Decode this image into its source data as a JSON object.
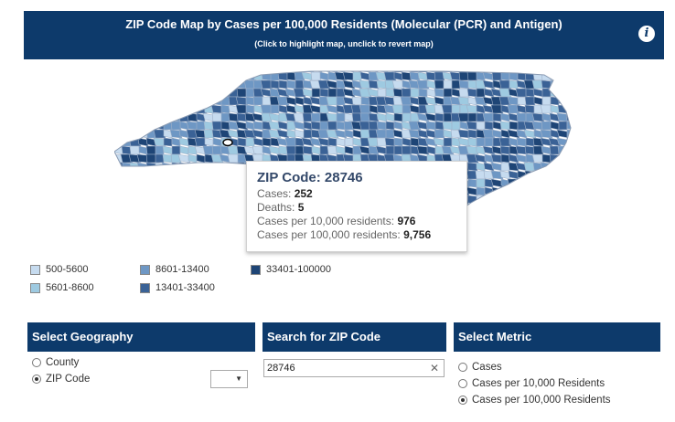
{
  "header": {
    "title": "ZIP Code Map by Cases per 100,000 Residents (Molecular (PCR) and Antigen)",
    "subtitle": "(Click to highlight map, unclick to revert map)",
    "info_icon": "info-icon",
    "background": "#0d3a6b"
  },
  "tooltip": {
    "title": "ZIP Code: 28746",
    "rows": [
      {
        "label": "Cases:",
        "value": "252"
      },
      {
        "label": "Deaths:",
        "value": "5"
      },
      {
        "label": "Cases per 10,000 residents:",
        "value": "976"
      },
      {
        "label": "Cases per 100,000 residents:",
        "value": "9,756"
      }
    ]
  },
  "legend": [
    {
      "label": "500-5600",
      "color": "#c6dbef"
    },
    {
      "label": "5601-8600",
      "color": "#9ecae1"
    },
    {
      "label": "8601-13400",
      "color": "#6e97c4"
    },
    {
      "label": "13401-33400",
      "color": "#3a6296"
    },
    {
      "label": "33401-100000",
      "color": "#1e4576"
    }
  ],
  "geography": {
    "header": "Select Geography",
    "options": [
      "County",
      "ZIP Code"
    ],
    "selected": "ZIP Code"
  },
  "zip_search": {
    "header": "Search for ZIP Code",
    "value": "28746",
    "clear_icon": "close-icon"
  },
  "metric": {
    "header": "Select Metric",
    "options": [
      "Cases",
      "Cases per 10,000 Residents",
      "Cases per 100,000 Residents"
    ],
    "selected": "Cases per 100,000 Residents"
  }
}
